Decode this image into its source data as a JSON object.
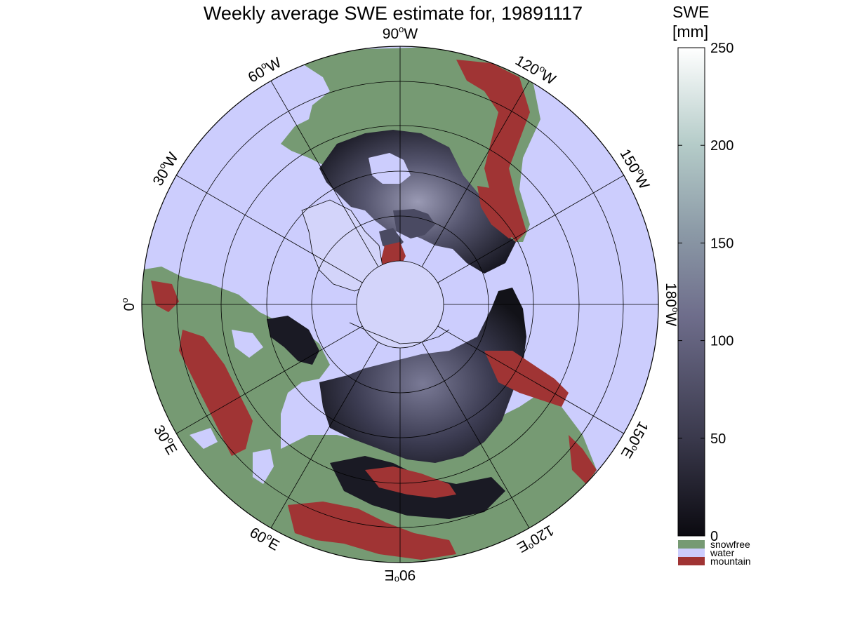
{
  "title": "Weekly average SWE estimate for, 19891117",
  "colorbar": {
    "title_line1": "SWE",
    "title_line2": "[mm]",
    "ticks": [
      "250",
      "200",
      "150",
      "100",
      "50",
      "0"
    ],
    "tick_values": [
      250,
      200,
      150,
      100,
      50,
      0
    ],
    "range": [
      0,
      250
    ],
    "gradient_stops": [
      "#0b0a10",
      "#3a394c",
      "#6e6d8b",
      "#8b99a6",
      "#b4cbc8",
      "#ffffff"
    ],
    "categories": [
      {
        "label": "snowfree",
        "color": "#769a73"
      },
      {
        "label": "water",
        "color": "#cccdfd"
      },
      {
        "label": "mountain",
        "color": "#a03434"
      }
    ]
  },
  "map": {
    "projection": "north polar stereographic",
    "longitude_labels": [
      {
        "id": "lon-90w",
        "deg": "90",
        "hemi": "W"
      },
      {
        "id": "lon-120w",
        "deg": "120",
        "hemi": "W"
      },
      {
        "id": "lon-150w",
        "deg": "150",
        "hemi": "W"
      },
      {
        "id": "lon-180w",
        "deg": "180",
        "hemi": "W"
      },
      {
        "id": "lon-150e",
        "deg": "150",
        "hemi": "E"
      },
      {
        "id": "lon-120e",
        "deg": "120",
        "hemi": "E"
      },
      {
        "id": "lon-90e",
        "deg": "90",
        "hemi": "E"
      },
      {
        "id": "lon-60e",
        "deg": "60",
        "hemi": "E"
      },
      {
        "id": "lon-30e",
        "deg": "30",
        "hemi": "E"
      },
      {
        "id": "lon-0",
        "deg": "0",
        "hemi": ""
      },
      {
        "id": "lon-30w",
        "deg": "30",
        "hemi": "W"
      },
      {
        "id": "lon-60w",
        "deg": "60",
        "hemi": "W"
      }
    ],
    "colors": {
      "water": "#cccdfd",
      "snowfree": "#769a73",
      "mountain": "#a03434",
      "snow_shallow": "#1a1a24",
      "snow_medium": "#4a4a62",
      "snow_deep": "#8a8aa6",
      "ice_sheet": "#d3d4fa",
      "grid": "#000000"
    }
  }
}
